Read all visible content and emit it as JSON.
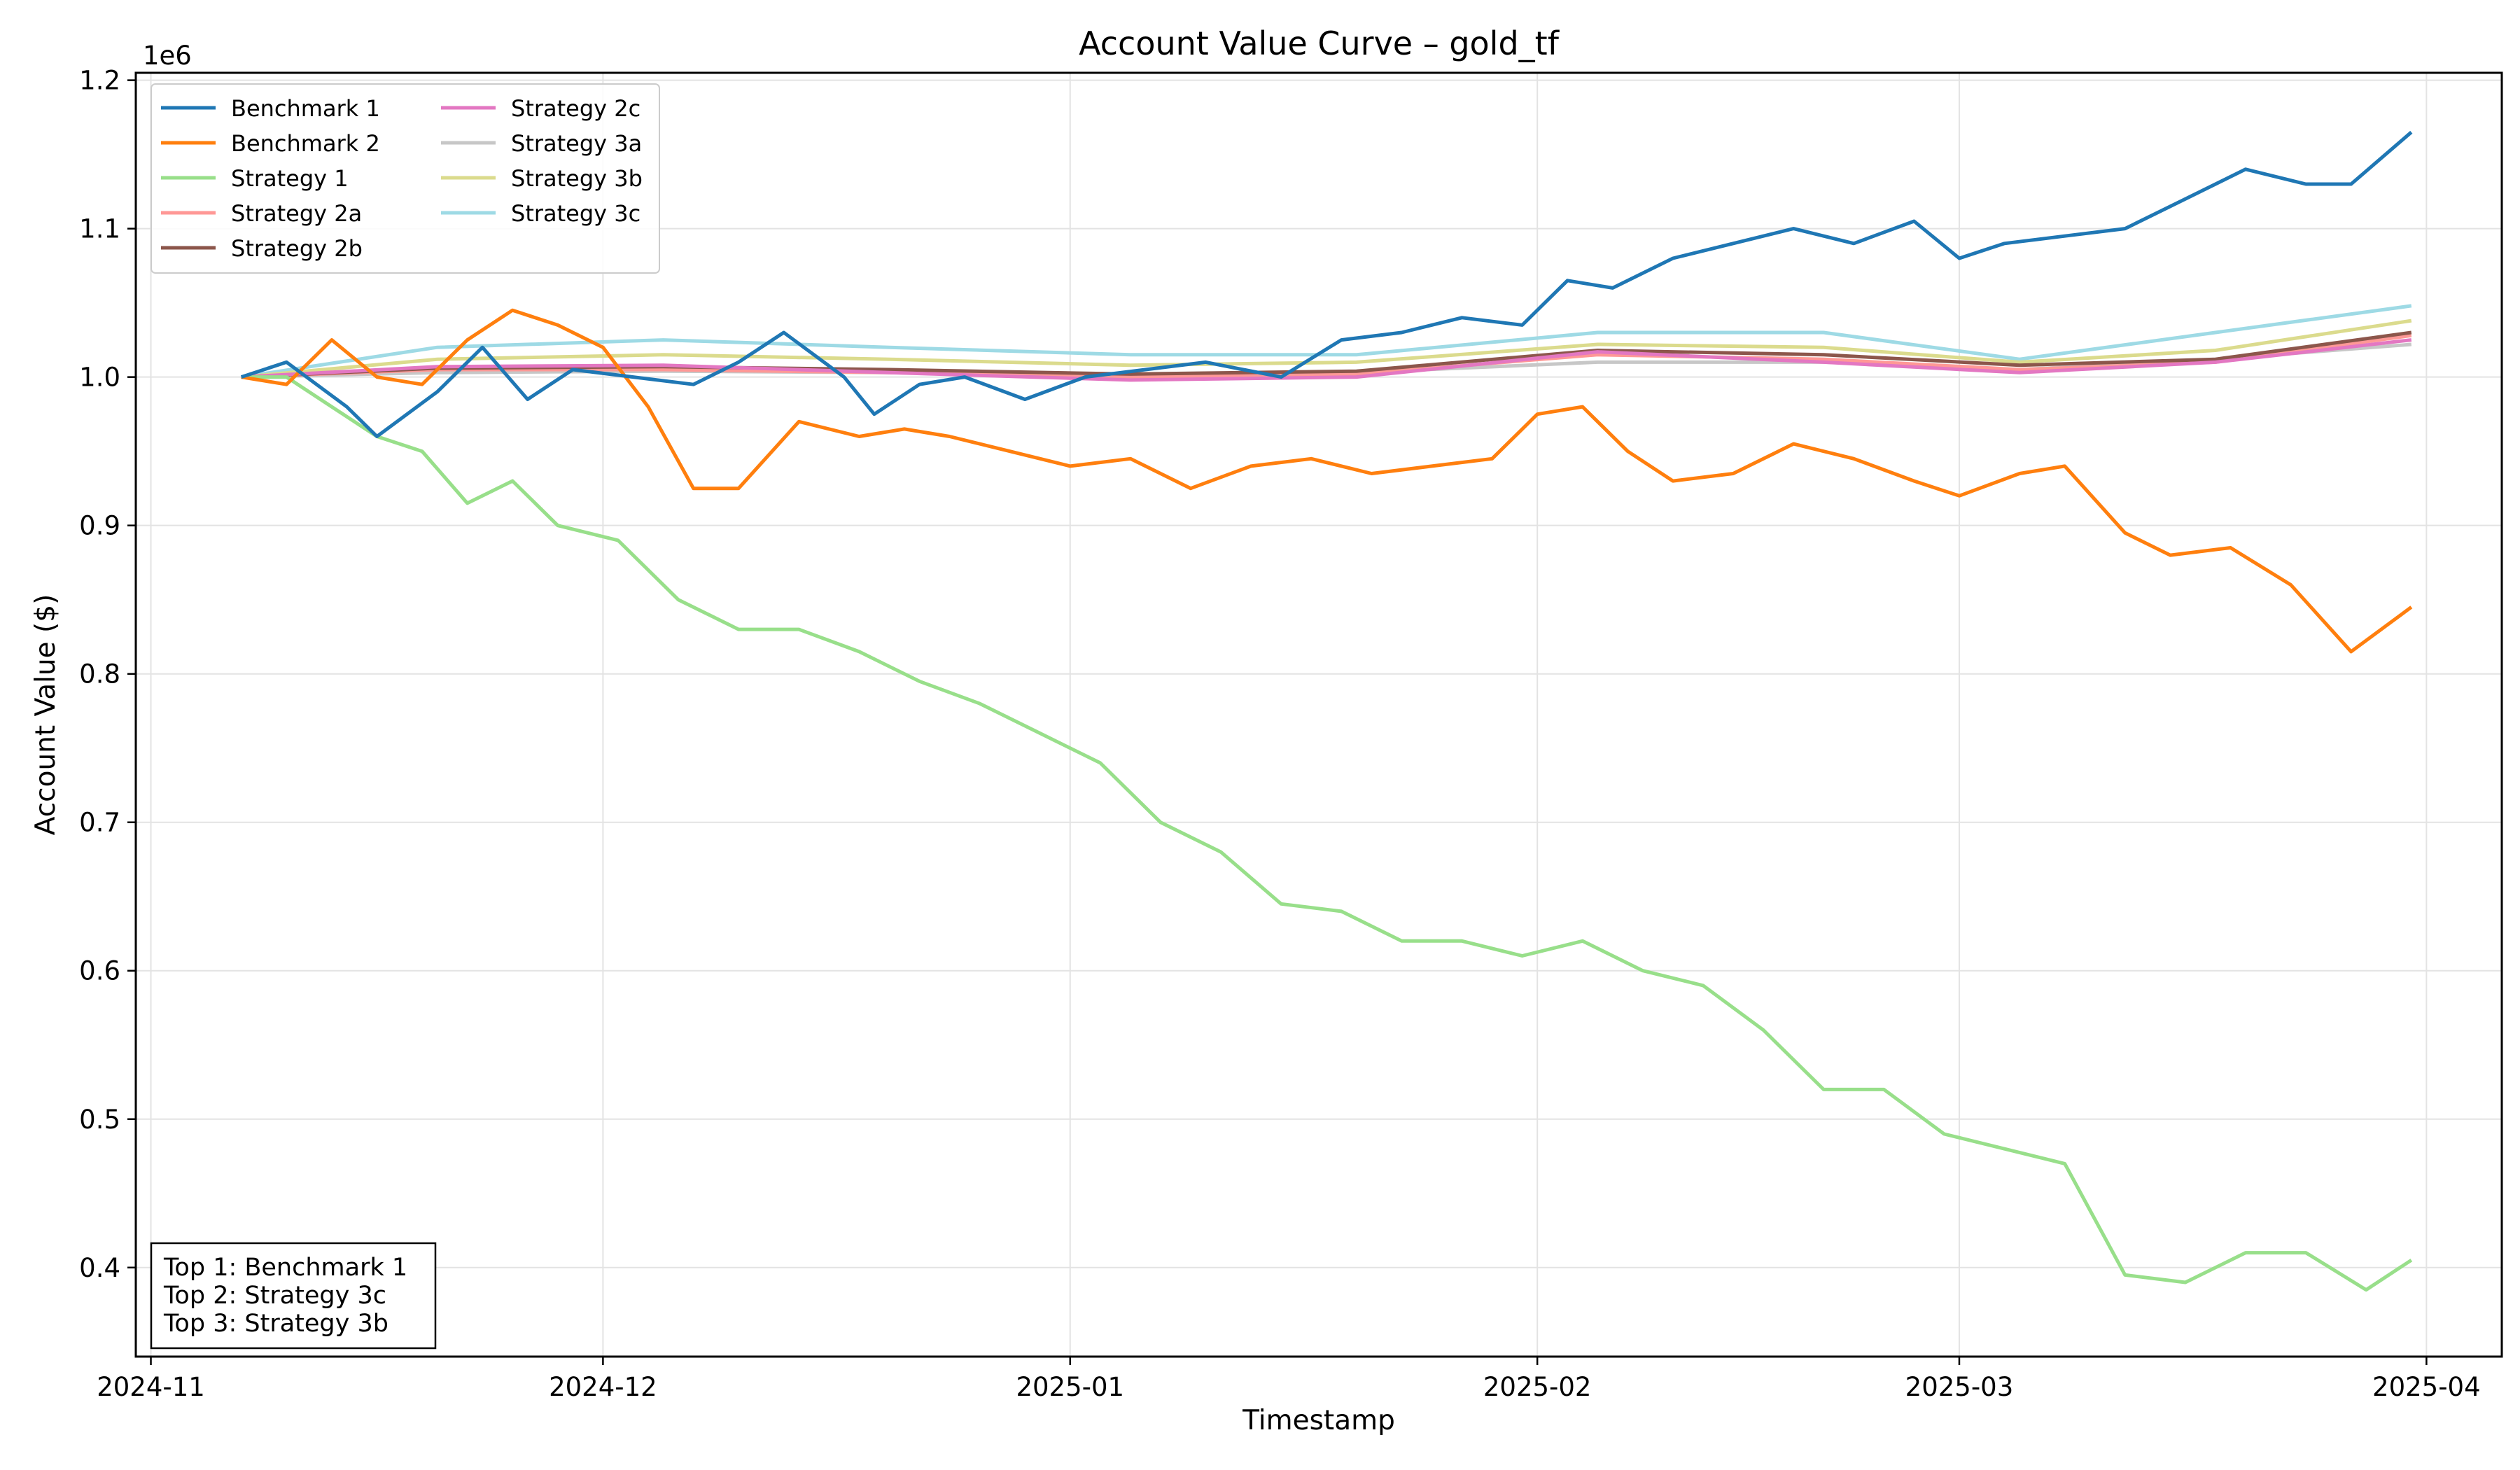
{
  "chart_data": {
    "type": "line",
    "title": "Account Value Curve – gold_tf",
    "xlabel": "Timestamp",
    "ylabel": "Account Value ($)",
    "y_offset_label": "1e6",
    "ylim": [
      0.34,
      1.205
    ],
    "xlim": [
      "2024-10-31",
      "2025-04-06"
    ],
    "x_ticks": [
      "2024-11-01",
      "2024-12-01",
      "2025-01-01",
      "2025-02-01",
      "2025-03-01",
      "2025-04-01"
    ],
    "x_tick_labels": [
      "2024-11",
      "2024-12",
      "2025-01",
      "2025-02",
      "2025-03",
      "2025-04"
    ],
    "y_ticks": [
      0.4,
      0.5,
      0.6,
      0.7,
      0.8,
      0.9,
      1.0,
      1.1,
      1.2
    ],
    "y_tick_labels": [
      "0.4",
      "0.5",
      "0.6",
      "0.7",
      "0.8",
      "0.9",
      "1.0",
      "1.1",
      "1.2"
    ],
    "grid": true,
    "legend_position": "top-left",
    "series": [
      {
        "name": "Benchmark 1",
        "color": "#1f77b4",
        "x": [
          "2024-11-07",
          "2024-11-10",
          "2024-11-14",
          "2024-11-16",
          "2024-11-20",
          "2024-11-23",
          "2024-11-26",
          "2024-11-29",
          "2024-12-03",
          "2024-12-07",
          "2024-12-10",
          "2024-12-13",
          "2024-12-17",
          "2024-12-19",
          "2024-12-22",
          "2024-12-25",
          "2024-12-29",
          "2025-01-02",
          "2025-01-06",
          "2025-01-10",
          "2025-01-15",
          "2025-01-19",
          "2025-01-23",
          "2025-01-27",
          "2025-01-31",
          "2025-02-03",
          "2025-02-06",
          "2025-02-10",
          "2025-02-14",
          "2025-02-18",
          "2025-02-22",
          "2025-02-26",
          "2025-03-01",
          "2025-03-04",
          "2025-03-08",
          "2025-03-12",
          "2025-03-16",
          "2025-03-20",
          "2025-03-24",
          "2025-03-27",
          "2025-03-31"
        ],
        "values": [
          1.0,
          1.01,
          0.98,
          0.96,
          0.99,
          1.02,
          0.985,
          1.005,
          1.0,
          0.995,
          1.01,
          1.03,
          1.0,
          0.975,
          0.995,
          1.0,
          0.985,
          1.0,
          1.005,
          1.01,
          1.0,
          1.025,
          1.03,
          1.04,
          1.035,
          1.065,
          1.06,
          1.08,
          1.09,
          1.1,
          1.09,
          1.105,
          1.08,
          1.09,
          1.095,
          1.1,
          1.12,
          1.14,
          1.13,
          1.13,
          1.165
        ]
      },
      {
        "name": "Benchmark 2",
        "color": "#ff7f0e",
        "x": [
          "2024-11-07",
          "2024-11-10",
          "2024-11-13",
          "2024-11-16",
          "2024-11-19",
          "2024-11-22",
          "2024-11-25",
          "2024-11-28",
          "2024-12-01",
          "2024-12-04",
          "2024-12-07",
          "2024-12-10",
          "2024-12-14",
          "2024-12-18",
          "2024-12-21",
          "2024-12-24",
          "2024-12-28",
          "2025-01-01",
          "2025-01-05",
          "2025-01-09",
          "2025-01-13",
          "2025-01-17",
          "2025-01-21",
          "2025-01-25",
          "2025-01-29",
          "2025-02-01",
          "2025-02-04",
          "2025-02-07",
          "2025-02-10",
          "2025-02-14",
          "2025-02-18",
          "2025-02-22",
          "2025-02-26",
          "2025-03-01",
          "2025-03-05",
          "2025-03-08",
          "2025-03-12",
          "2025-03-15",
          "2025-03-19",
          "2025-03-23",
          "2025-03-27",
          "2025-03-31"
        ],
        "values": [
          1.0,
          0.995,
          1.025,
          1.0,
          0.995,
          1.025,
          1.045,
          1.035,
          1.02,
          0.98,
          0.925,
          0.925,
          0.97,
          0.96,
          0.965,
          0.96,
          0.95,
          0.94,
          0.945,
          0.925,
          0.94,
          0.945,
          0.935,
          0.94,
          0.945,
          0.975,
          0.98,
          0.95,
          0.93,
          0.935,
          0.955,
          0.945,
          0.93,
          0.92,
          0.935,
          0.94,
          0.895,
          0.88,
          0.885,
          0.86,
          0.815,
          0.845
        ]
      },
      {
        "name": "Strategy 1",
        "color": "#98df8a",
        "x": [
          "2024-11-07",
          "2024-11-10",
          "2024-11-13",
          "2024-11-16",
          "2024-11-19",
          "2024-11-22",
          "2024-11-25",
          "2024-11-28",
          "2024-12-02",
          "2024-12-06",
          "2024-12-10",
          "2024-12-14",
          "2024-12-18",
          "2024-12-22",
          "2024-12-26",
          "2024-12-30",
          "2025-01-03",
          "2025-01-07",
          "2025-01-11",
          "2025-01-15",
          "2025-01-19",
          "2025-01-23",
          "2025-01-27",
          "2025-01-31",
          "2025-02-04",
          "2025-02-08",
          "2025-02-12",
          "2025-02-16",
          "2025-02-20",
          "2025-02-24",
          "2025-02-28",
          "2025-03-04",
          "2025-03-08",
          "2025-03-12",
          "2025-03-16",
          "2025-03-20",
          "2025-03-24",
          "2025-03-28",
          "2025-03-31"
        ],
        "values": [
          1.0,
          1.0,
          0.98,
          0.96,
          0.95,
          0.915,
          0.93,
          0.9,
          0.89,
          0.85,
          0.83,
          0.83,
          0.815,
          0.795,
          0.78,
          0.76,
          0.74,
          0.7,
          0.68,
          0.645,
          0.64,
          0.62,
          0.62,
          0.61,
          0.62,
          0.6,
          0.59,
          0.56,
          0.52,
          0.52,
          0.49,
          0.48,
          0.47,
          0.395,
          0.39,
          0.41,
          0.41,
          0.385,
          0.405
        ]
      },
      {
        "name": "Strategy 2a",
        "color": "#ff9896",
        "x": [
          "2024-11-07",
          "2024-11-20",
          "2024-12-05",
          "2024-12-20",
          "2025-01-05",
          "2025-01-20",
          "2025-02-05",
          "2025-02-20",
          "2025-03-05",
          "2025-03-18",
          "2025-03-31"
        ],
        "values": [
          1.0,
          1.005,
          1.005,
          1.003,
          1.0,
          1.002,
          1.015,
          1.012,
          1.005,
          1.01,
          1.028
        ]
      },
      {
        "name": "Strategy 2b",
        "color": "#8c564b",
        "x": [
          "2024-11-07",
          "2024-11-20",
          "2024-12-05",
          "2024-12-20",
          "2025-01-05",
          "2025-01-20",
          "2025-02-05",
          "2025-02-20",
          "2025-03-05",
          "2025-03-18",
          "2025-03-31"
        ],
        "values": [
          1.0,
          1.006,
          1.007,
          1.005,
          1.002,
          1.004,
          1.018,
          1.015,
          1.008,
          1.012,
          1.03
        ]
      },
      {
        "name": "Strategy 2c",
        "color": "#e377c2",
        "x": [
          "2024-11-07",
          "2024-11-20",
          "2024-12-05",
          "2024-12-20",
          "2025-01-05",
          "2025-01-20",
          "2025-02-05",
          "2025-02-20",
          "2025-03-05",
          "2025-03-18",
          "2025-03-31"
        ],
        "values": [
          1.0,
          1.007,
          1.008,
          1.003,
          0.998,
          1.0,
          1.017,
          1.01,
          1.003,
          1.01,
          1.025
        ]
      },
      {
        "name": "Strategy 3a",
        "color": "#c7c7c7",
        "x": [
          "2024-11-07",
          "2024-11-20",
          "2024-12-05",
          "2024-12-20",
          "2025-01-05",
          "2025-01-20",
          "2025-02-05",
          "2025-02-20",
          "2025-03-05",
          "2025-03-18",
          "2025-03-31"
        ],
        "values": [
          1.0,
          1.003,
          1.004,
          1.003,
          1.002,
          1.003,
          1.01,
          1.01,
          1.005,
          1.012,
          1.022
        ]
      },
      {
        "name": "Strategy 3b",
        "color": "#dbdb8d",
        "x": [
          "2024-11-07",
          "2024-11-20",
          "2024-12-05",
          "2024-12-20",
          "2025-01-05",
          "2025-01-20",
          "2025-02-05",
          "2025-02-20",
          "2025-03-05",
          "2025-03-18",
          "2025-03-31"
        ],
        "values": [
          1.0,
          1.012,
          1.015,
          1.012,
          1.008,
          1.01,
          1.022,
          1.02,
          1.01,
          1.018,
          1.038
        ]
      },
      {
        "name": "Strategy 3c",
        "color": "#9edae5",
        "x": [
          "2024-11-07",
          "2024-11-20",
          "2024-12-05",
          "2024-12-20",
          "2025-01-05",
          "2025-01-20",
          "2025-02-05",
          "2025-02-20",
          "2025-03-05",
          "2025-03-18",
          "2025-03-31"
        ],
        "values": [
          1.0,
          1.02,
          1.025,
          1.02,
          1.015,
          1.015,
          1.03,
          1.03,
          1.012,
          1.03,
          1.048
        ]
      }
    ],
    "rank_box": [
      "Top 1: Benchmark 1",
      "Top 2: Strategy 3c",
      "Top 3: Strategy 3b"
    ]
  }
}
